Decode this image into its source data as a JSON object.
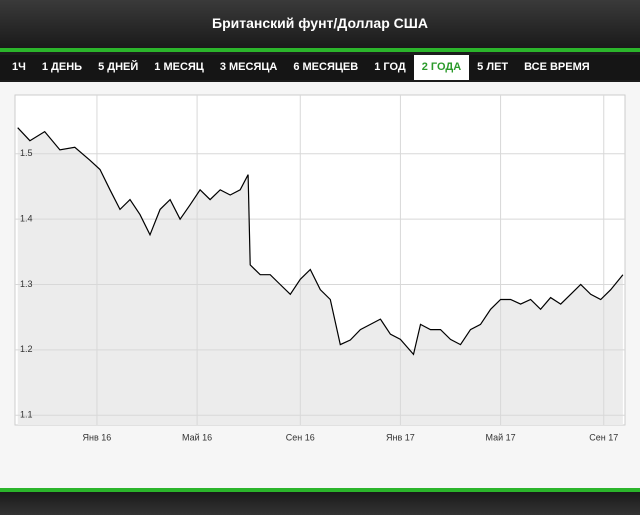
{
  "tabs": [
    "1Ч",
    "1 ДЕНЬ",
    "5 ДНЕЙ",
    "1 МЕСЯЦ",
    "3 МЕСЯЦА",
    "6 МЕСЯЦЕВ",
    "1 ГОД",
    "2 ГОДА",
    "5 ЛЕТ",
    "ВСЕ ВРЕМЯ"
  ],
  "active_tab": 7,
  "chart_data": {
    "type": "area",
    "title": "Британский фунт/Доллар США",
    "color": "#000000",
    "fill": "#ececec",
    "grid": true,
    "x": [
      2015.739,
      2015.779,
      2015.828,
      2015.878,
      2015.927,
      2015.977,
      2016.01,
      2016.043,
      2016.076,
      2016.109,
      2016.142,
      2016.175,
      2016.208,
      2016.241,
      2016.274,
      2016.307,
      2016.34,
      2016.373,
      2016.406,
      2016.439,
      2016.472,
      2016.498,
      2016.505,
      2016.538,
      2016.571,
      2016.604,
      2016.637,
      2016.67,
      2016.703,
      2016.736,
      2016.769,
      2016.802,
      2016.835,
      2016.868,
      2016.901,
      2016.934,
      2016.967,
      2017.0,
      2017.043,
      2017.066,
      2017.099,
      2017.132,
      2017.165,
      2017.198,
      2017.231,
      2017.264,
      2017.297,
      2017.33,
      2017.363,
      2017.396,
      2017.429,
      2017.462,
      2017.495,
      2017.528,
      2017.561,
      2017.594,
      2017.627,
      2017.66,
      2017.693,
      2017.733
    ],
    "values": [
      1.54,
      1.52,
      1.534,
      1.506,
      1.51,
      1.49,
      1.476,
      1.445,
      1.415,
      1.43,
      1.407,
      1.376,
      1.415,
      1.43,
      1.4,
      1.422,
      1.445,
      1.43,
      1.445,
      1.437,
      1.445,
      1.468,
      1.33,
      1.315,
      1.315,
      1.3,
      1.285,
      1.308,
      1.323,
      1.292,
      1.277,
      1.208,
      1.215,
      1.231,
      1.239,
      1.247,
      1.224,
      1.216,
      1.193,
      1.239,
      1.231,
      1.231,
      1.216,
      1.208,
      1.231,
      1.239,
      1.262,
      1.277,
      1.277,
      1.27,
      1.277,
      1.262,
      1.28,
      1.27,
      1.285,
      1.3,
      1.285,
      1.277,
      1.292,
      1.315
    ],
    "xlim": [
      2015.73,
      2017.74
    ],
    "xticks": [
      {
        "value": 2016,
        "label": "Янв 16"
      },
      {
        "value": 2016.33,
        "label": "Май 16"
      },
      {
        "value": 2016.67,
        "label": "Сен 16"
      },
      {
        "value": 2017,
        "label": "Янв 17"
      },
      {
        "value": 2017.33,
        "label": "Май 17"
      },
      {
        "value": 2017.67,
        "label": "Сен 17"
      }
    ],
    "ylim": [
      1.085,
      1.59
    ],
    "yticks": [
      1.1,
      1.2,
      1.3,
      1.4,
      1.5
    ]
  }
}
